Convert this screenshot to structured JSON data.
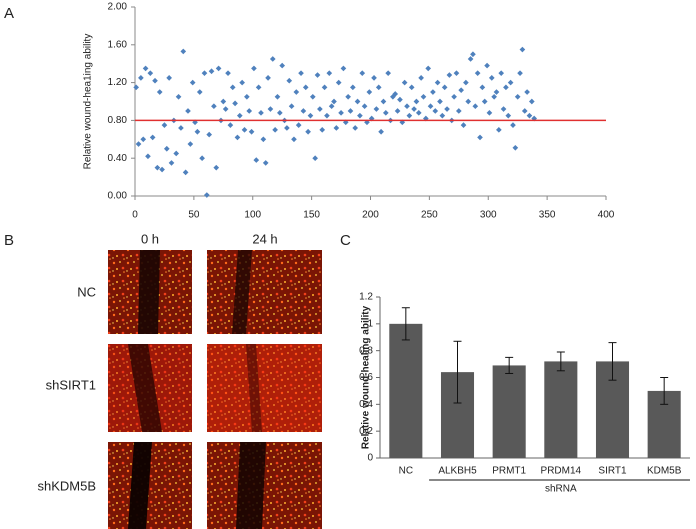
{
  "chart_data": [
    {
      "type": "scatter",
      "panel_label": "A",
      "ylabel": "Relative wound-hea1ing ability",
      "color": "#4f81bd",
      "hline": 0.8,
      "hline_color": "#e03030",
      "xlim": [
        0,
        400
      ],
      "xticks": [
        0,
        50,
        100,
        150,
        200,
        250,
        300,
        350,
        400
      ],
      "ylim": [
        0,
        2
      ],
      "yticks": [
        {
          "value": 0,
          "label": "0.00"
        },
        {
          "value": 0.4,
          "label": "0.40"
        },
        {
          "value": 0.8,
          "label": "0.80"
        },
        {
          "value": 1.2,
          "label": "1.20"
        },
        {
          "value": 1.6,
          "label": "1.60"
        },
        {
          "value": 2,
          "label": "2.00"
        }
      ],
      "x": [
        1,
        3,
        5,
        7,
        9,
        11,
        13,
        15,
        17,
        19,
        21,
        23,
        25,
        27,
        29,
        31,
        33,
        35,
        37,
        39,
        41,
        43,
        45,
        47,
        49,
        51,
        53,
        55,
        57,
        59,
        61,
        63,
        65,
        67,
        69,
        71,
        73,
        75,
        77,
        79,
        81,
        83,
        85,
        87,
        89,
        91,
        93,
        95,
        97,
        99,
        101,
        103,
        105,
        107,
        109,
        111,
        113,
        115,
        117,
        119,
        121,
        123,
        125,
        127,
        129,
        131,
        133,
        135,
        137,
        139,
        141,
        143,
        145,
        147,
        149,
        151,
        153,
        155,
        157,
        159,
        161,
        163,
        165,
        167,
        169,
        171,
        173,
        175,
        177,
        179,
        181,
        183,
        185,
        187,
        189,
        191,
        193,
        195,
        197,
        199,
        201,
        203,
        205,
        207,
        209,
        211,
        213,
        215,
        217,
        219,
        221,
        223,
        225,
        227,
        229,
        231,
        233,
        235,
        237,
        239,
        241,
        243,
        245,
        247,
        249,
        251,
        253,
        255,
        257,
        259,
        261,
        263,
        265,
        267,
        269,
        271,
        273,
        275,
        277,
        279,
        281,
        283,
        285,
        287,
        289,
        291,
        293,
        295,
        297,
        299,
        301,
        303,
        305,
        307,
        309,
        311,
        313,
        315,
        317,
        319,
        321,
        323,
        325,
        327,
        329,
        331,
        333,
        335,
        337,
        339
      ],
      "values": [
        1.15,
        0.55,
        1.25,
        0.6,
        1.35,
        0.42,
        1.3,
        0.62,
        1.22,
        0.3,
        1.1,
        0.28,
        0.75,
        0.5,
        1.25,
        0.35,
        0.8,
        0.45,
        1.05,
        0.72,
        1.53,
        0.25,
        0.9,
        0.55,
        1.2,
        0.78,
        0.68,
        1.1,
        0.4,
        1.3,
        0.01,
        0.65,
        1.32,
        0.95,
        0.3,
        1.35,
        0.8,
        1.0,
        0.92,
        1.3,
        0.75,
        1.15,
        0.98,
        0.62,
        0.85,
        1.2,
        0.7,
        1.05,
        0.9,
        0.68,
        1.35,
        0.38,
        1.15,
        0.88,
        0.6,
        0.35,
        1.25,
        0.92,
        1.45,
        0.7,
        1.05,
        0.88,
        1.38,
        0.8,
        0.72,
        1.22,
        0.95,
        0.6,
        1.1,
        0.75,
        1.3,
        0.9,
        1.15,
        0.68,
        0.85,
        1.05,
        0.4,
        1.28,
        0.92,
        0.7,
        1.15,
        0.85,
        1.3,
        0.95,
        1.0,
        0.72,
        1.2,
        0.88,
        1.35,
        0.78,
        1.05,
        0.9,
        1.15,
        0.72,
        1.0,
        0.85,
        1.3,
        0.95,
        0.78,
        1.1,
        0.82,
        1.25,
        0.92,
        1.15,
        0.68,
        1.0,
        0.88,
        1.3,
        0.8,
        1.05,
        1.08,
        0.9,
        1.02,
        0.78,
        1.2,
        0.95,
        0.85,
        1.15,
        0.92,
        1.0,
        0.88,
        1.25,
        1.05,
        0.82,
        1.35,
        0.95,
        1.1,
        0.9,
        1.2,
        1.0,
        0.85,
        1.15,
        0.92,
        1.28,
        0.8,
        1.05,
        1.3,
        0.9,
        1.12,
        0.75,
        1.2,
        1.0,
        1.45,
        1.5,
        0.95,
        1.3,
        0.62,
        1.15,
        1.0,
        1.38,
        0.88,
        1.25,
        1.05,
        1.1,
        0.7,
        1.3,
        0.92,
        1.15,
        0.85,
        1.2,
        0.75,
        0.51,
        1.05,
        1.3,
        1.55,
        0.9,
        1.1,
        0.85,
        1.0,
        0.82
      ]
    },
    {
      "type": "bar",
      "panel_label": "C",
      "ylabel": "Relative wound-healing ability",
      "xlabel": "shRNA",
      "color": "#595959",
      "categories": [
        "NC",
        "ALKBH5",
        "PRMT1",
        "PRDM14",
        "SIRT1",
        "KDM5B"
      ],
      "values": [
        1,
        0.64,
        0.69,
        0.72,
        0.72,
        0.5
      ],
      "errors": [
        0.12,
        0.23,
        0.06,
        0.07,
        0.14,
        0.1
      ],
      "ylim": [
        0,
        1.2
      ],
      "yticks": [
        0,
        0.2,
        0.4,
        0.6,
        0.8,
        1,
        1.2
      ]
    }
  ],
  "images": {
    "panel_label": "B",
    "columns": [
      "0 h",
      "24 h"
    ],
    "rows": [
      "NC",
      "shSIRT1",
      "shKDM5B"
    ]
  }
}
